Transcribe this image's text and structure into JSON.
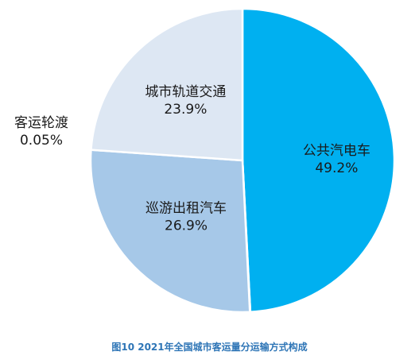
{
  "chart_data": {
    "type": "pie",
    "title": "图10  2021年全国城市客运量分运输方式构成",
    "slices": [
      {
        "name": "公共汽电车",
        "value": 49.2,
        "value_label": "49.2%",
        "color": "#00b0f0"
      },
      {
        "name": "客运轮渡",
        "value": 0.05,
        "value_label": "0.05%",
        "color": "#0000ff"
      },
      {
        "name": "巡游出租汽车",
        "value": 26.9,
        "value_label": "26.9%",
        "color": "#a6c8e8"
      },
      {
        "name": "城市轨道交通",
        "value": 23.9,
        "value_label": "23.9%",
        "color": "#dde7f3"
      }
    ],
    "start": "top",
    "direction": "clockwise",
    "title_color": "#2e75b6"
  }
}
